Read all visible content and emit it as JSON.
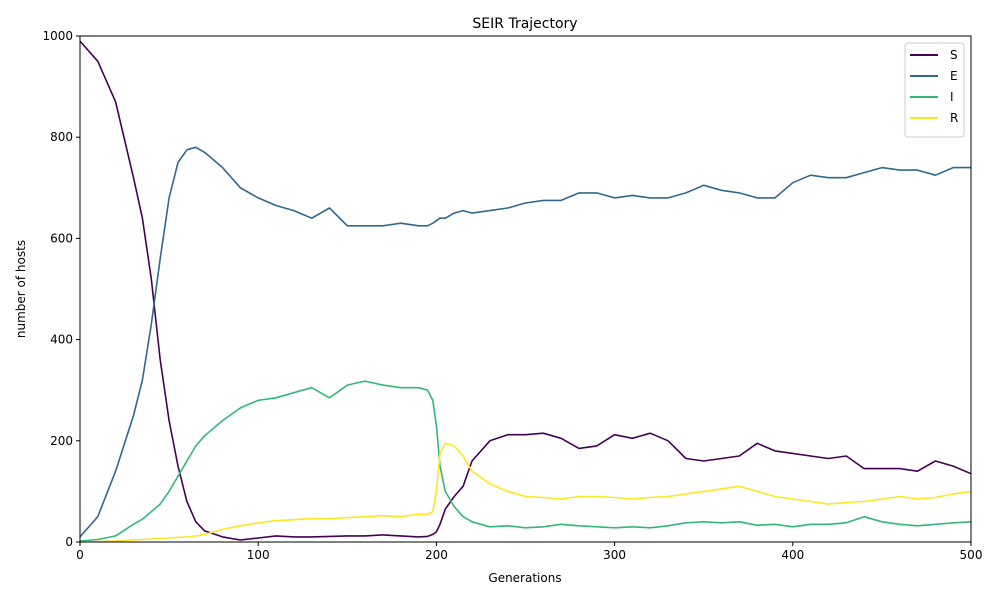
{
  "chart_data": {
    "type": "line",
    "title": "SEIR Trajectory",
    "xlabel": "Generations",
    "ylabel": "number of hosts",
    "xlim": [
      0,
      500
    ],
    "ylim": [
      0,
      1000
    ],
    "x_ticks": [
      0,
      100,
      200,
      300,
      400,
      500
    ],
    "y_ticks": [
      0,
      200,
      400,
      600,
      800,
      1000
    ],
    "grid": false,
    "legend_position": "top-right",
    "x": [
      0,
      10,
      20,
      30,
      35,
      40,
      45,
      50,
      55,
      60,
      65,
      70,
      80,
      90,
      100,
      110,
      120,
      130,
      140,
      150,
      160,
      170,
      180,
      190,
      195,
      198,
      200,
      202,
      205,
      210,
      215,
      220,
      230,
      240,
      250,
      260,
      270,
      280,
      290,
      300,
      310,
      320,
      330,
      340,
      350,
      360,
      370,
      380,
      390,
      400,
      410,
      420,
      430,
      440,
      450,
      460,
      470,
      480,
      490,
      500
    ],
    "series": [
      {
        "name": "S",
        "color": "#440154",
        "values": [
          990,
          950,
          870,
          720,
          640,
          520,
          360,
          240,
          150,
          80,
          40,
          22,
          10,
          4,
          8,
          12,
          10,
          10,
          11,
          12,
          12,
          14,
          12,
          10,
          11,
          15,
          20,
          35,
          65,
          90,
          110,
          160,
          200,
          212,
          212,
          215,
          205,
          185,
          190,
          212,
          205,
          215,
          200,
          165,
          160,
          165,
          170,
          195,
          180,
          175,
          170,
          165,
          170,
          145,
          145,
          145,
          140,
          160,
          150,
          135
        ]
      },
      {
        "name": "E",
        "color": "#31688e",
        "values": [
          10,
          50,
          140,
          250,
          320,
          430,
          560,
          680,
          750,
          775,
          780,
          770,
          740,
          700,
          680,
          665,
          655,
          640,
          660,
          625,
          625,
          625,
          630,
          625,
          625,
          630,
          635,
          640,
          640,
          650,
          655,
          650,
          655,
          660,
          670,
          675,
          675,
          690,
          690,
          680,
          685,
          680,
          680,
          690,
          705,
          695,
          690,
          680,
          680,
          710,
          725,
          720,
          720,
          730,
          740,
          735,
          735,
          725,
          740,
          740
        ]
      },
      {
        "name": "I",
        "color": "#35b779",
        "values": [
          2,
          5,
          12,
          35,
          45,
          60,
          75,
          100,
          130,
          160,
          190,
          210,
          240,
          265,
          280,
          285,
          295,
          305,
          285,
          310,
          318,
          310,
          305,
          305,
          300,
          280,
          230,
          150,
          100,
          70,
          50,
          40,
          30,
          32,
          28,
          30,
          35,
          32,
          30,
          28,
          30,
          28,
          32,
          38,
          40,
          38,
          40,
          33,
          35,
          30,
          35,
          35,
          38,
          50,
          40,
          35,
          32,
          35,
          38,
          40
        ]
      },
      {
        "name": "R",
        "color": "#fde725",
        "values": [
          0,
          1,
          2,
          4,
          5,
          6,
          7,
          8,
          9,
          10,
          12,
          15,
          25,
          32,
          38,
          42,
          44,
          46,
          46,
          48,
          50,
          52,
          50,
          55,
          55,
          60,
          100,
          175,
          195,
          190,
          170,
          140,
          115,
          100,
          90,
          88,
          85,
          90,
          90,
          88,
          85,
          88,
          90,
          95,
          100,
          105,
          110,
          100,
          90,
          85,
          80,
          75,
          78,
          80,
          85,
          90,
          85,
          88,
          95,
          100
        ]
      }
    ]
  }
}
